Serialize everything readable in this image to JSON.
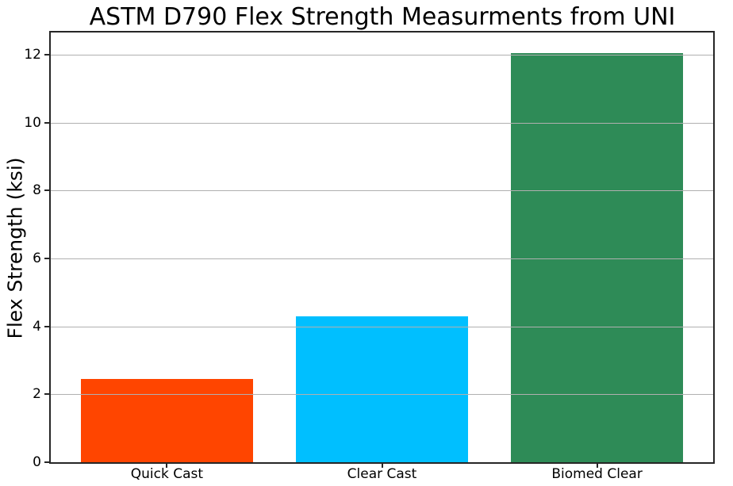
{
  "chart_data": {
    "type": "bar",
    "title": "ASTM D790 Flex Strength Measurments from UNI",
    "ylabel": "Flex Strength (ksi)",
    "xlabel": "",
    "categories": [
      "Quick Cast",
      "Clear Cast",
      "Biomed Clear"
    ],
    "values": [
      2.45,
      4.3,
      12.05
    ],
    "bar_colors": [
      "#ff4500",
      "#00bfff",
      "#2e8b57"
    ],
    "yticks": [
      0,
      2,
      4,
      6,
      8,
      10,
      12
    ],
    "ylim": [
      0,
      12.65
    ],
    "grid": "horizontal",
    "grid_color": "#b0b0b0",
    "grid_above_bars": true,
    "spine_color": "#262626",
    "background_color": "#ffffff",
    "legend_position": "none"
  }
}
